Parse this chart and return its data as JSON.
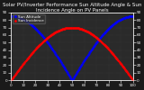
{
  "title": "Solar PV/Inverter Performance Sun Altitude Angle & Sun Incidence Angle on PV Panels",
  "legend": [
    "Sun Altitude",
    "Sun Incidence"
  ],
  "line_colors": [
    "#0000ff",
    "#ff0000"
  ],
  "background_color": "#1a1a1a",
  "plot_bg_color": "#2a2a2a",
  "grid_color": "#444444",
  "text_color": "#ffffff",
  "xlim": [
    0,
    100
  ],
  "ylim_left": [
    0,
    90
  ],
  "ylim_right": [
    0,
    90
  ],
  "title_fontsize": 4.0,
  "tick_fontsize": 3.0,
  "legend_fontsize": 3.0,
  "right_ytick_values": [
    0,
    10,
    20,
    30,
    40,
    50,
    60,
    70,
    80,
    90
  ],
  "left_ytick_values": [
    0,
    10,
    20,
    30,
    40,
    50,
    60,
    70,
    80,
    90
  ]
}
